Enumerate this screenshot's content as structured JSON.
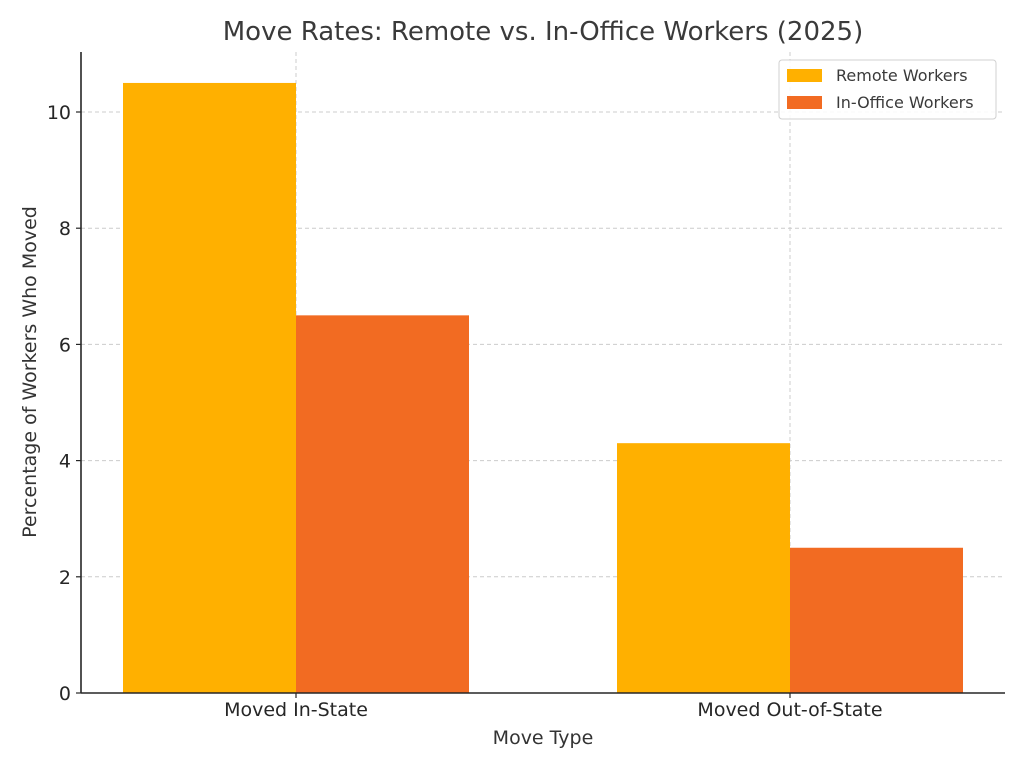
{
  "chart_data": {
    "type": "bar",
    "title": "Move Rates: Remote vs. In-Office Workers (2025)",
    "xlabel": "Move Type",
    "ylabel": "Percentage of Workers Who Moved",
    "categories": [
      "Moved In-State",
      "Moved Out-of-State"
    ],
    "series": [
      {
        "name": "Remote Workers",
        "color": "#FFB000",
        "values": [
          10.5,
          4.3
        ]
      },
      {
        "name": "In-Office Workers",
        "color": "#F26B22",
        "values": [
          6.5,
          2.5
        ]
      }
    ],
    "ylim": [
      0,
      11.05
    ],
    "yticks": [
      0,
      2,
      4,
      6,
      8,
      10
    ],
    "grid": true,
    "legend_position": "upper right"
  }
}
